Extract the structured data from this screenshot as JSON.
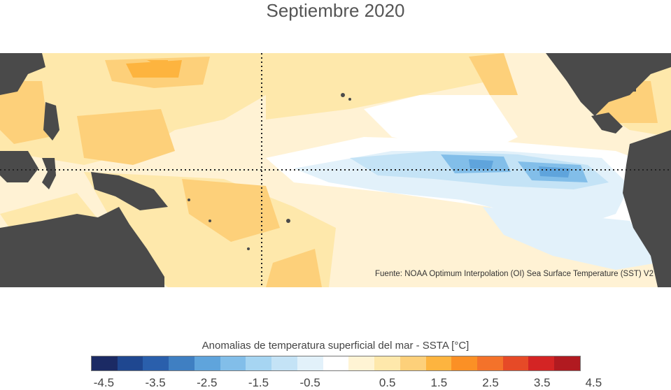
{
  "title": "Septiembre 2020",
  "source": "Fuente: NOAA Optimum Interpolation (OI) Sea Surface Temperature (SST) V2",
  "legend": {
    "title": "Anomalias de temperatura superficial del mar - SSTA  [°C]",
    "colors": [
      "#1b2a64",
      "#1f4790",
      "#2a5fac",
      "#3f7fc2",
      "#5fa4dc",
      "#82bee9",
      "#a6d5f2",
      "#c4e3f6",
      "#e2f1fa",
      "#ffffff",
      "#fff4d4",
      "#fee8ab",
      "#fdd07a",
      "#fdb43f",
      "#fb9025",
      "#f4722a",
      "#e64a27",
      "#d42424",
      "#b11a20"
    ],
    "ticks": [
      "-4.5",
      "-3.5",
      "-2.5",
      "-1.5",
      "-0.5",
      "0.5",
      "1.5",
      "2.5",
      "3.5",
      "4.5"
    ]
  },
  "colors": {
    "land": "#4a4a4a",
    "ocean_base": "#fff2d4",
    "neutral": "#ffffff",
    "warm_light": "#fee8ab",
    "warm_mid": "#fdd07a",
    "warm_strong": "#fdb43f",
    "cool_light": "#e2f1fa",
    "cool_mid": "#c4e3f6",
    "cool_strong": "#82bee9",
    "cool_deep": "#5fa4dc"
  }
}
